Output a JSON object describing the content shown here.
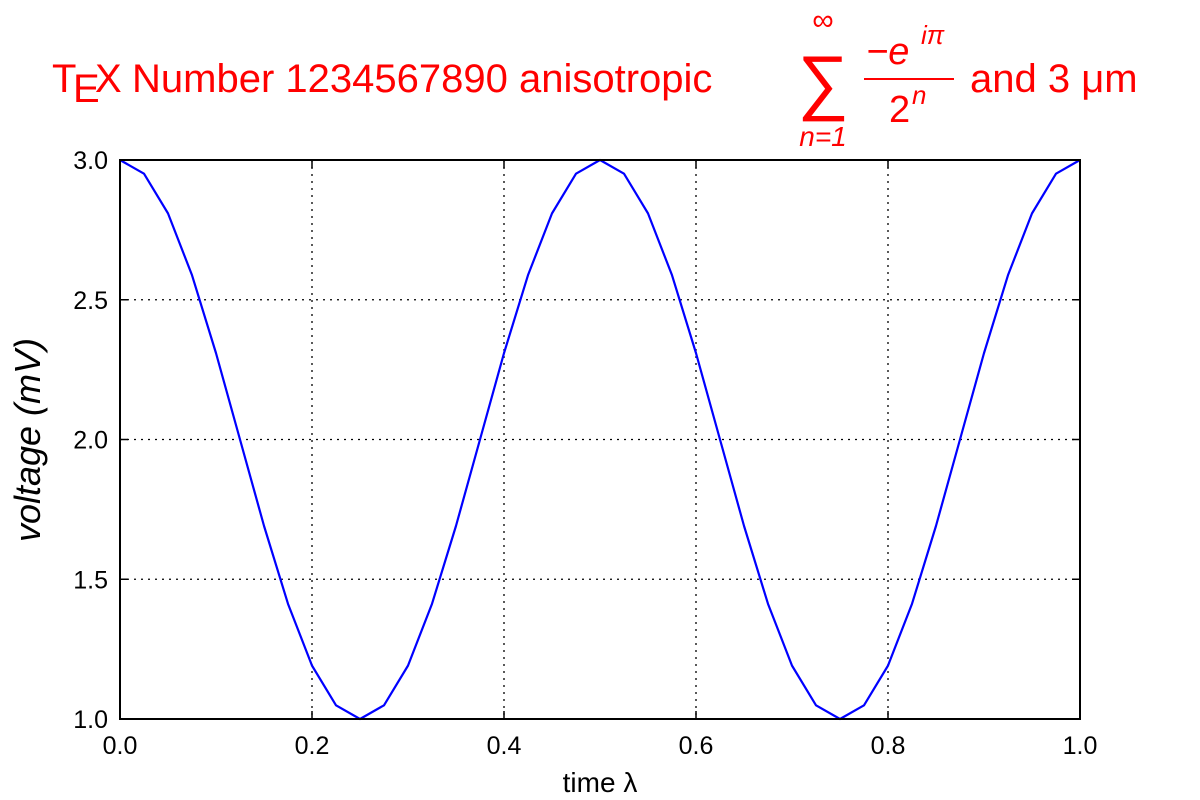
{
  "chart_data": {
    "type": "line",
    "title": {
      "tex_prefix_T": "T",
      "tex_prefix_E": "E",
      "tex_prefix_X": "X",
      "text_before": "Number 1234567890 anisotropic",
      "sum_upper": "∞",
      "sum_lower": "n=1",
      "sum_symbol": "∑",
      "numerator_base": "−e",
      "numerator_exp": "iπ",
      "denominator_base": "2",
      "denominator_exp": "n",
      "text_after": "and 3 μm",
      "color": "#ff0000"
    },
    "xlabel": "time λ",
    "ylabel": "voltage (mV)",
    "xlim": [
      0.0,
      1.0
    ],
    "ylim": [
      1.0,
      3.0
    ],
    "xticks": [
      "0.0",
      "0.2",
      "0.4",
      "0.6",
      "0.8",
      "1.0"
    ],
    "yticks": [
      "1.0",
      "1.5",
      "2.0",
      "2.5",
      "3.0"
    ],
    "grid": true,
    "series": [
      {
        "color": "#0000ff",
        "x": [
          0.0,
          0.025,
          0.05,
          0.075,
          0.1,
          0.125,
          0.15,
          0.175,
          0.2,
          0.225,
          0.25,
          0.275,
          0.3,
          0.325,
          0.35,
          0.375,
          0.4,
          0.425,
          0.45,
          0.475,
          0.5,
          0.525,
          0.55,
          0.575,
          0.6,
          0.625,
          0.65,
          0.675,
          0.7,
          0.725,
          0.75,
          0.775,
          0.8,
          0.825,
          0.85,
          0.875,
          0.9,
          0.925,
          0.95,
          0.975,
          1.0
        ],
        "y": [
          3.0,
          2.951,
          2.809,
          2.588,
          2.309,
          2.0,
          1.691,
          1.412,
          1.191,
          1.049,
          1.0,
          1.049,
          1.191,
          1.412,
          1.691,
          2.0,
          2.309,
          2.588,
          2.809,
          2.951,
          3.0,
          2.951,
          2.809,
          2.588,
          2.309,
          2.0,
          1.691,
          1.412,
          1.191,
          1.049,
          1.0,
          1.049,
          1.191,
          1.412,
          1.691,
          2.0,
          2.309,
          2.588,
          2.809,
          2.951,
          3.0
        ]
      }
    ]
  }
}
